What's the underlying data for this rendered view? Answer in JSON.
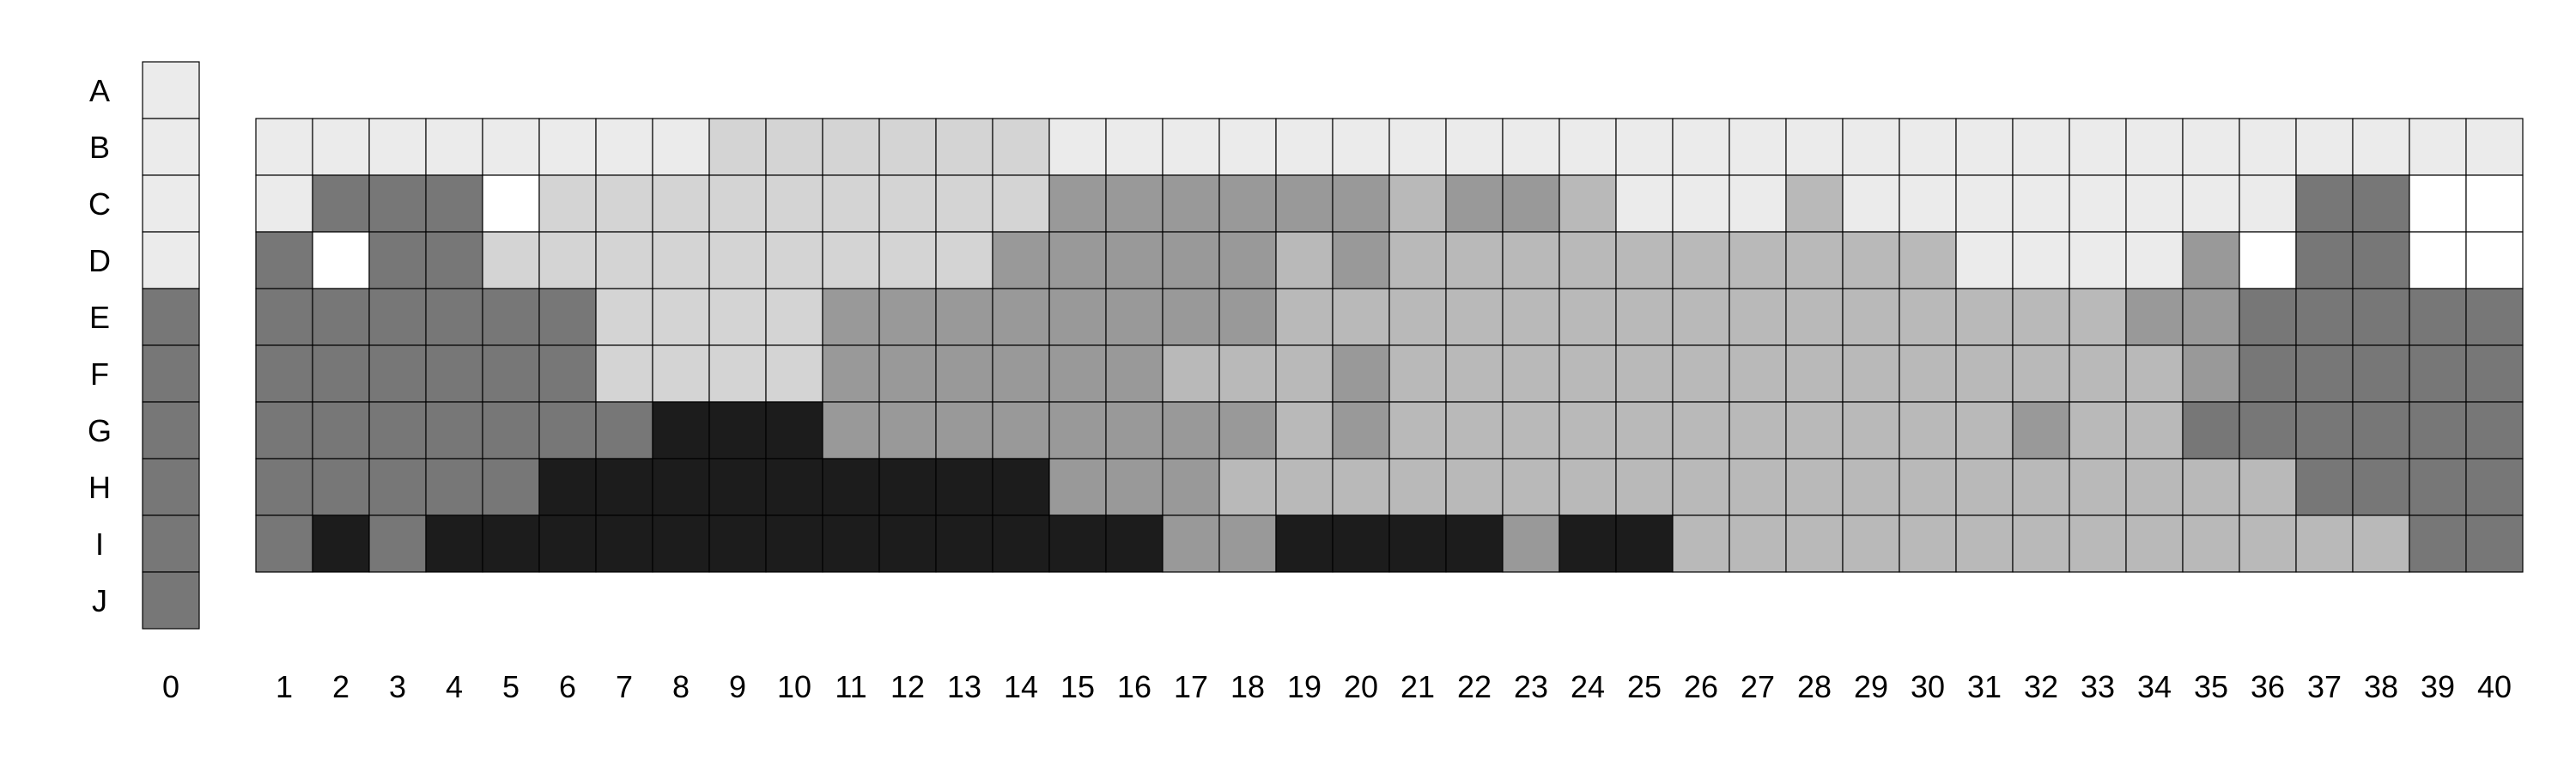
{
  "chart_data": {
    "type": "heatmap",
    "title": "",
    "xlabel": "",
    "ylabel": "",
    "row_labels": [
      "A",
      "B",
      "C",
      "D",
      "E",
      "F",
      "G",
      "H",
      "I",
      "J"
    ],
    "column0": {
      "label": "0",
      "values": [
        1,
        1,
        1,
        1,
        5,
        5,
        5,
        5,
        5,
        5
      ]
    },
    "columns": [
      "1",
      "2",
      "3",
      "4",
      "5",
      "6",
      "7",
      "8",
      "9",
      "10",
      "11",
      "12",
      "13",
      "14",
      "15",
      "16",
      "17",
      "18",
      "19",
      "20",
      "21",
      "22",
      "23",
      "24",
      "25",
      "26",
      "27",
      "28",
      "29",
      "30",
      "31",
      "32",
      "33",
      "34",
      "35",
      "36",
      "37",
      "38",
      "39",
      "40"
    ],
    "grid_rows": [
      "B",
      "C",
      "D",
      "E",
      "F",
      "G",
      "H",
      "I"
    ],
    "shade_legend": {
      "0": "#ffffff",
      "1": "#ebebeb",
      "2": "#d4d4d4",
      "3": "#b9b9b9",
      "4": "#999999",
      "5": "#777777",
      "6": "#1c1c1c"
    },
    "values": [
      [
        1,
        1,
        1,
        1,
        1,
        1,
        1,
        1,
        2,
        2,
        2,
        2,
        2,
        2,
        1,
        1,
        1,
        1,
        1,
        1,
        1,
        1,
        1,
        1,
        1,
        1,
        1,
        1,
        1,
        1,
        1,
        1,
        1,
        1,
        1,
        1,
        1,
        1,
        1,
        1
      ],
      [
        1,
        5,
        5,
        5,
        0,
        2,
        2,
        2,
        2,
        2,
        2,
        2,
        2,
        2,
        4,
        4,
        4,
        4,
        4,
        4,
        3,
        4,
        4,
        3,
        1,
        1,
        1,
        3,
        1,
        1,
        1,
        1,
        1,
        1,
        1,
        1,
        5,
        5,
        0,
        0
      ],
      [
        5,
        0,
        5,
        5,
        2,
        2,
        2,
        2,
        2,
        2,
        2,
        2,
        2,
        4,
        4,
        4,
        4,
        4,
        3,
        4,
        3,
        3,
        3,
        3,
        3,
        3,
        3,
        3,
        3,
        3,
        1,
        1,
        1,
        1,
        4,
        0,
        5,
        5,
        0,
        0
      ],
      [
        5,
        5,
        5,
        5,
        5,
        5,
        2,
        2,
        2,
        2,
        4,
        4,
        4,
        4,
        4,
        4,
        4,
        4,
        3,
        3,
        3,
        3,
        3,
        3,
        3,
        3,
        3,
        3,
        3,
        3,
        3,
        3,
        3,
        4,
        4,
        5,
        5,
        5,
        5,
        5
      ],
      [
        5,
        5,
        5,
        5,
        5,
        5,
        2,
        2,
        2,
        2,
        4,
        4,
        4,
        4,
        4,
        4,
        3,
        3,
        3,
        4,
        3,
        3,
        3,
        3,
        3,
        3,
        3,
        3,
        3,
        3,
        3,
        3,
        3,
        3,
        4,
        5,
        5,
        5,
        5,
        5
      ],
      [
        5,
        5,
        5,
        5,
        5,
        5,
        5,
        6,
        6,
        6,
        4,
        4,
        4,
        4,
        4,
        4,
        4,
        4,
        3,
        4,
        3,
        3,
        3,
        3,
        3,
        3,
        3,
        3,
        3,
        3,
        3,
        4,
        3,
        3,
        5,
        5,
        5,
        5,
        5,
        5
      ],
      [
        5,
        5,
        5,
        5,
        5,
        6,
        6,
        6,
        6,
        6,
        6,
        6,
        6,
        6,
        4,
        4,
        4,
        3,
        3,
        3,
        3,
        3,
        3,
        3,
        3,
        3,
        3,
        3,
        3,
        3,
        3,
        3,
        3,
        3,
        3,
        3,
        5,
        5,
        5,
        5
      ],
      [
        5,
        6,
        5,
        6,
        6,
        6,
        6,
        6,
        6,
        6,
        6,
        6,
        6,
        6,
        6,
        6,
        4,
        4,
        6,
        6,
        6,
        6,
        4,
        6,
        6,
        3,
        3,
        3,
        3,
        3,
        3,
        3,
        3,
        3,
        3,
        3,
        3,
        3,
        5,
        5
      ]
    ]
  }
}
